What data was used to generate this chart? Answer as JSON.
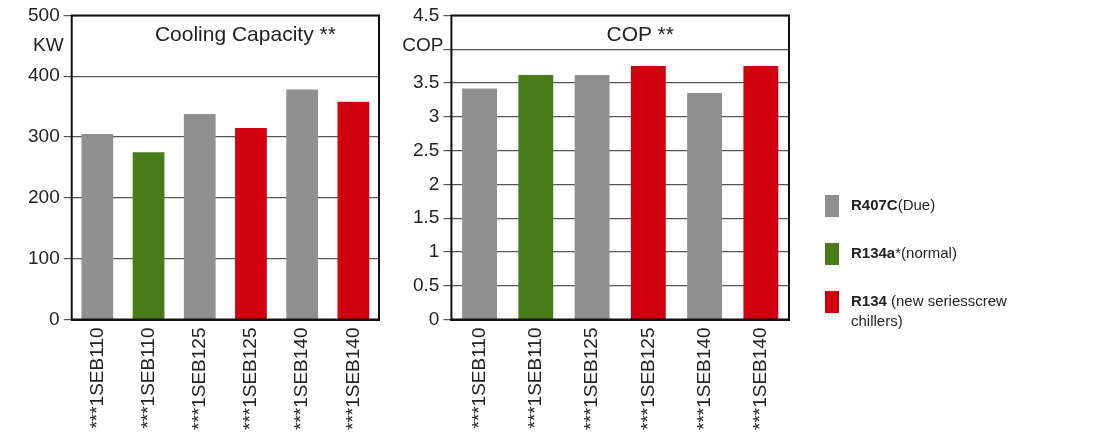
{
  "chart_data": [
    {
      "type": "bar",
      "title": "Cooling Capacity **",
      "ylabel": "KW",
      "categories": [
        "***1SEB110",
        "***1SEB110",
        "***1SEB125",
        "***1SEB125",
        "***1SEB140",
        "***1SEB140"
      ],
      "series": [
        {
          "color": "#8f8f8f",
          "values": [
            305,
            null,
            338,
            null,
            378,
            null
          ]
        },
        {
          "color": "#4a7d19",
          "values": [
            null,
            275,
            null,
            null,
            null,
            null
          ]
        },
        {
          "color": "#d0000e",
          "values": [
            null,
            null,
            null,
            315,
            null,
            358
          ]
        }
      ],
      "ylim": [
        0,
        500
      ],
      "yticks": [
        0,
        100,
        200,
        300,
        400,
        500
      ],
      "grid": "y"
    },
    {
      "type": "bar",
      "title": "COP **",
      "ylabel": "COP",
      "categories": [
        "***1SEB110",
        "***1SEB110",
        "***1SEB125",
        "***1SEB125",
        "***1SEB140",
        "***1SEB140"
      ],
      "series": [
        {
          "name": "R407C(Due)",
          "color": "#8f8f8f",
          "values": [
            3.42,
            null,
            3.62,
            null,
            3.35,
            null
          ]
        },
        {
          "name": "R134a*(normal)",
          "color": "#4a7d19",
          "values": [
            null,
            3.62,
            null,
            null,
            null,
            null
          ]
        },
        {
          "name": "R134 (new seriesscrew chillers)",
          "color": "#d0000e",
          "values": [
            null,
            null,
            null,
            3.75,
            null,
            3.75
          ]
        }
      ],
      "ylim": [
        0,
        4.5
      ],
      "yticks": [
        0,
        0.5,
        1,
        1.5,
        2,
        2.5,
        3,
        3.5,
        {
          "value": 4,
          "label": null
        },
        4.5
      ],
      "grid": "y",
      "legend": "right"
    }
  ]
}
